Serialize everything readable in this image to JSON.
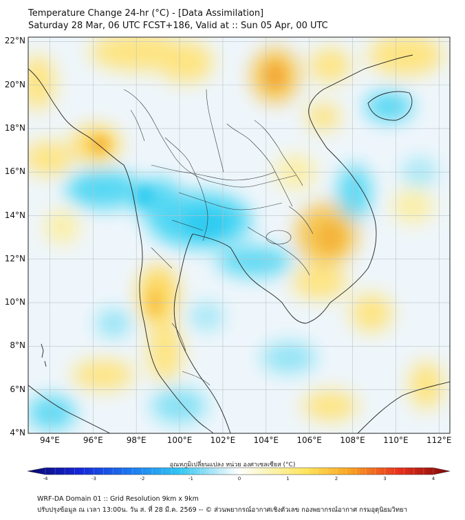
{
  "title": {
    "line1": "Temperature Change 24-hr (°C) - [Data Assimilation]",
    "line2": "Saturday 28 Mar, 06 UTC FCST+186, Valid at :: Sun 05 Apr, 00 UTC"
  },
  "map": {
    "lon_range": [
      93,
      112.5
    ],
    "lat_range": [
      4,
      22.2
    ],
    "lat_ticks": [
      "22°N",
      "20°N",
      "18°N",
      "16°N",
      "14°N",
      "12°N",
      "10°N",
      "8°N",
      "6°N",
      "4°N"
    ],
    "lon_ticks": [
      "94°E",
      "96°E",
      "98°E",
      "100°E",
      "102°E",
      "104°E",
      "106°E",
      "108°E",
      "110°E",
      "112°E"
    ],
    "grid": true,
    "colors": {
      "neutral": "#eef6fb",
      "warm": "#ffe37a",
      "warm_strong": "#f7b33a",
      "cool": "#3fd3f3",
      "coast": "#222222"
    }
  },
  "colorbar": {
    "title": "อุณหภูมิเปลี่ยนแปลง หน่วย องศาเซลเซียส (°C)",
    "range": [
      -4,
      4
    ],
    "ticks": [
      "-4",
      "-3",
      "-2",
      "-1",
      "0",
      "1",
      "2",
      "3",
      "4"
    ]
  },
  "footer": {
    "line1": "WRF-DA Domain 01 :: Grid Resolution 9km x 9km",
    "line2": "ปรับปรุงข้อมูล ณ เวลา 13:00น. วัน ส. ที่ 28 มี.ค. 2569 -- © ส่วนพยากรณ์อากาศเชิงตัวเลข กองพยากรณ์อากาศ กรมอุตุนิยมวิทยา"
  }
}
